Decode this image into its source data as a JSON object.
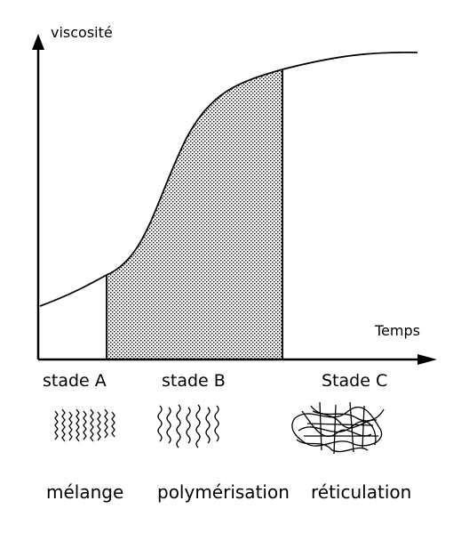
{
  "diagram": {
    "y_axis_label": "viscosité",
    "x_axis_label": "Temps",
    "stages": [
      {
        "label": "stade A",
        "process": "mélange"
      },
      {
        "label": "stade B",
        "process": "polymérisation"
      },
      {
        "label": "Stade C",
        "process": "réticulation"
      }
    ],
    "shaded_stage": "stade B",
    "colors": {
      "ink": "#000000",
      "background": "#ffffff"
    }
  }
}
